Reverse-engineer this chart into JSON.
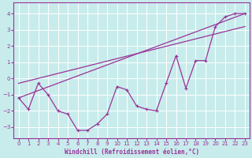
{
  "xlabel": "Windchill (Refroidissement éolien,°C)",
  "bg_color": "#c8ecec",
  "grid_color": "#ffffff",
  "line_color": "#993399",
  "xlim": [
    -0.5,
    23.5
  ],
  "ylim": [
    -3.7,
    4.7
  ],
  "xticks": [
    0,
    1,
    2,
    3,
    4,
    5,
    6,
    7,
    8,
    9,
    10,
    11,
    12,
    13,
    14,
    15,
    16,
    17,
    18,
    19,
    20,
    21,
    22,
    23
  ],
  "yticks": [
    -3,
    -2,
    -1,
    0,
    1,
    2,
    3,
    4
  ],
  "line1_x": [
    0,
    1,
    2,
    3,
    4,
    5,
    6,
    7,
    8,
    9,
    10,
    11,
    12,
    13,
    14,
    15,
    16,
    17,
    18,
    19,
    20,
    21,
    22,
    23
  ],
  "line1_y": [
    -1.2,
    -1.9,
    -0.3,
    -1.0,
    -2.0,
    -2.2,
    -3.2,
    -3.2,
    -2.8,
    -2.2,
    -0.5,
    -0.7,
    -1.7,
    -1.9,
    -2.0,
    -0.3,
    1.4,
    -0.6,
    1.1,
    1.1,
    3.2,
    3.8,
    4.0,
    4.0
  ],
  "line2_x": [
    0,
    23
  ],
  "line2_y": [
    -1.2,
    4.0
  ],
  "line3_x": [
    0,
    23
  ],
  "line3_y": [
    -0.3,
    3.2
  ],
  "marker_x": [
    0,
    1,
    2,
    3,
    4,
    5,
    6,
    7,
    8,
    9,
    10,
    11,
    12,
    13,
    14,
    15,
    16,
    17,
    18,
    19,
    20,
    21,
    22,
    23
  ],
  "marker_y": [
    -1.2,
    -1.9,
    -0.3,
    -1.0,
    -2.0,
    -2.2,
    -3.2,
    -3.2,
    -2.8,
    -2.2,
    -0.5,
    -0.7,
    -1.7,
    -1.9,
    -2.0,
    -0.3,
    1.4,
    -0.6,
    1.1,
    1.1,
    3.2,
    3.8,
    4.0,
    4.0
  ]
}
